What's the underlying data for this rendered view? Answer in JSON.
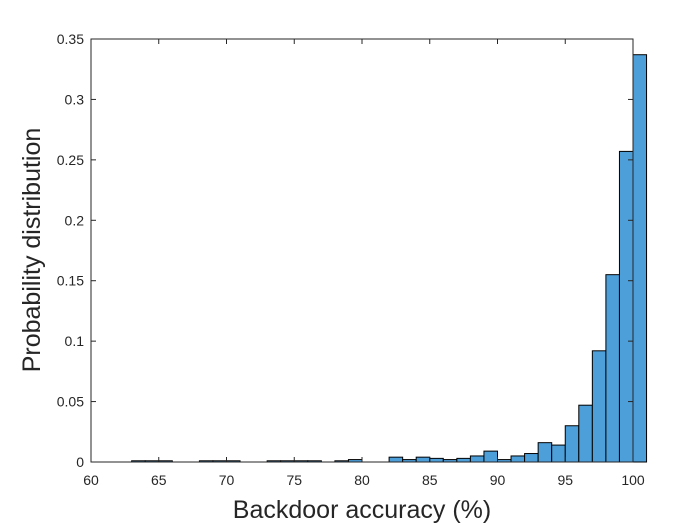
{
  "chart_data": {
    "type": "bar",
    "title": "",
    "xlabel": "Backdoor accuracy (%)",
    "ylabel": "Probability distribution",
    "xlim": [
      60,
      100
    ],
    "ylim": [
      0,
      0.35
    ],
    "xticks": [
      60,
      65,
      70,
      75,
      80,
      85,
      90,
      95,
      100
    ],
    "xtick_labels": [
      "60",
      "65",
      "70",
      "75",
      "80",
      "85",
      "90",
      "95",
      "100"
    ],
    "yticks": [
      0,
      0.05,
      0.1,
      0.15,
      0.2,
      0.25,
      0.3,
      0.35
    ],
    "ytick_labels": [
      "0",
      "0.05",
      "0.1",
      "0.15",
      "0.2",
      "0.25",
      "0.3",
      "0.35"
    ],
    "bin_width": 1,
    "bin_edges": [
      63,
      64,
      65,
      66,
      67,
      68,
      69,
      70,
      71,
      72,
      73,
      74,
      75,
      76,
      77,
      78,
      79,
      80,
      81,
      82,
      83,
      84,
      85,
      86,
      87,
      88,
      89,
      90,
      91,
      92,
      93,
      94,
      95,
      96,
      97,
      98,
      99,
      100
    ],
    "values": [
      0.001,
      0.001,
      0.001,
      0,
      0,
      0.001,
      0.001,
      0.001,
      0,
      0,
      0.001,
      0.001,
      0.001,
      0.001,
      0,
      0.001,
      0.002,
      0,
      0,
      0.004,
      0.002,
      0.004,
      0.003,
      0.002,
      0.003,
      0.005,
      0.009,
      0.002,
      0.005,
      0.007,
      0.016,
      0.014,
      0.03,
      0.047,
      0.092,
      0.155,
      0.257,
      0.337
    ],
    "bar_color": "#4d9fda",
    "edge_color": "#000000",
    "grid": false,
    "box": true
  }
}
